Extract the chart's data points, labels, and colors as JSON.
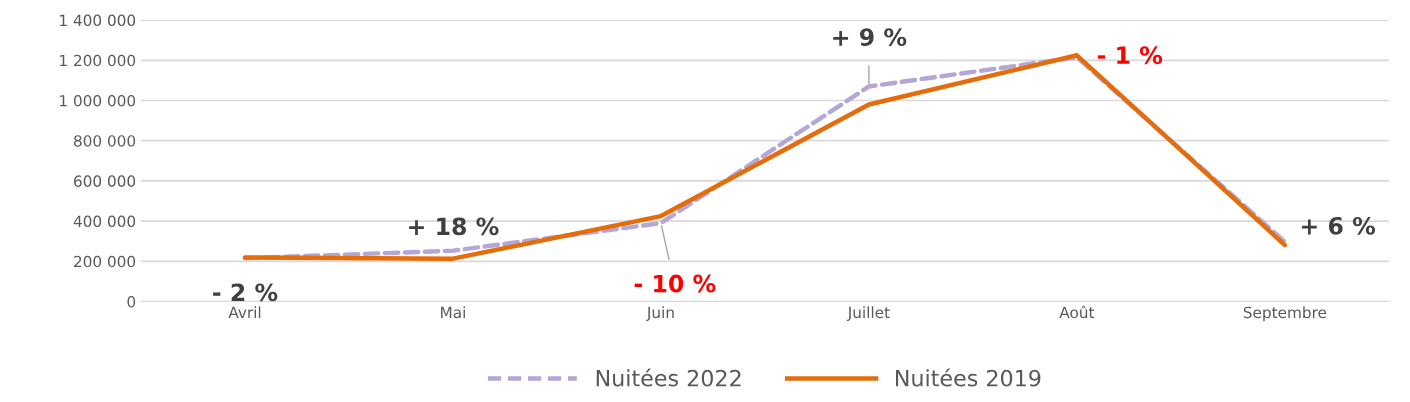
{
  "chart_data": {
    "type": "line",
    "categories": [
      "Avril",
      "Mai",
      "Juin",
      "Juillet",
      "Août",
      "Septembre"
    ],
    "series": [
      {
        "name": "Nuitées 2022",
        "color": "#b4a7d6",
        "line_style": "dashed",
        "values": [
          215000,
          253000,
          390000,
          1070000,
          1215000,
          297000
        ]
      },
      {
        "name": "Nuitées 2019",
        "color": "#e46c0a",
        "line_style": "solid",
        "values": [
          219000,
          213000,
          425000,
          980000,
          1225000,
          281000
        ]
      }
    ],
    "ylim": [
      0,
      1400000
    ],
    "yticks": [
      {
        "value": 0,
        "label": "0"
      },
      {
        "value": 200000,
        "label": "200 000"
      },
      {
        "value": 400000,
        "label": "400 000"
      },
      {
        "value": 600000,
        "label": "600 000"
      },
      {
        "value": 800000,
        "label": "800 000"
      },
      {
        "value": 1000000,
        "label": "1 000 000"
      },
      {
        "value": 1200000,
        "label": "1 200 000"
      },
      {
        "value": 1400000,
        "label": "1 400 000"
      }
    ],
    "grid": "y",
    "legend": "bottom",
    "marker": "none",
    "annotations": [
      {
        "text": "- 2 %",
        "x": "Avril",
        "y": 215000
      },
      {
        "text": "+ 18 %",
        "x": "Mai",
        "y": 253000
      },
      {
        "text": "- 10 %",
        "x": "Juin",
        "y": 390000
      },
      {
        "text": "+ 9 %",
        "x": "Juillet",
        "y": 1070000
      },
      {
        "text": "- 1 %",
        "x": "Août",
        "y": 1215000
      },
      {
        "text": "+ 6 %",
        "x": "Septembre",
        "y": 297000
      }
    ]
  }
}
